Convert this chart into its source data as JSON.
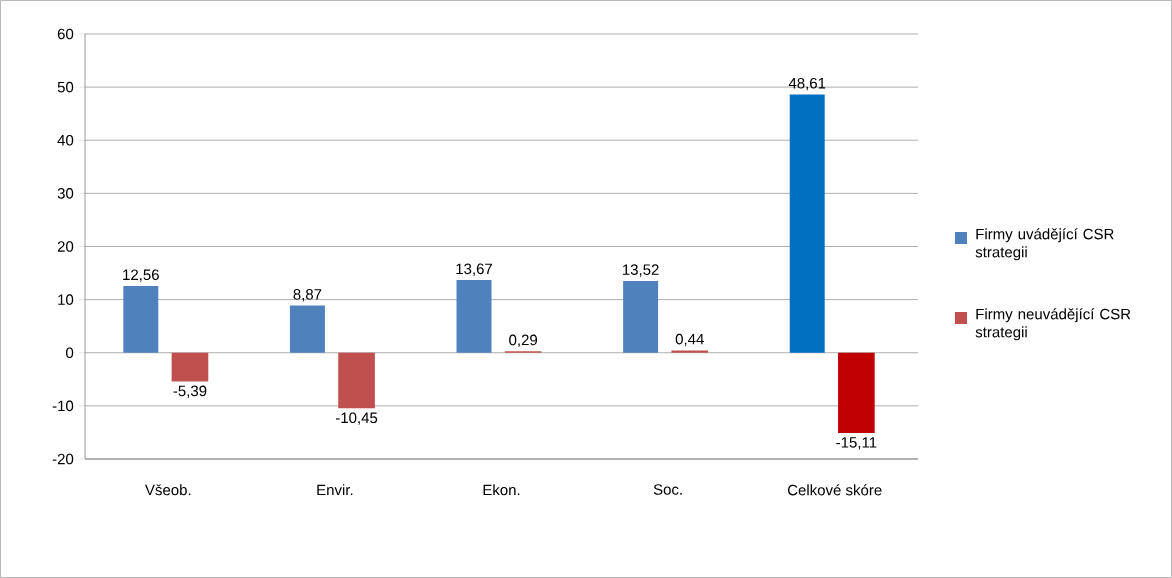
{
  "chart_data": {
    "type": "bar",
    "categories": [
      "Všeob.",
      "Envir.",
      "Ekon.",
      "Soc.",
      "Celkové skóre"
    ],
    "series": [
      {
        "name": "Firmy uvádějící CSR strategii",
        "color": "#4f81bd",
        "colors": [
          "#4f81bd",
          "#4f81bd",
          "#4f81bd",
          "#4f81bd",
          "#0070c0"
        ],
        "values": [
          12.56,
          8.87,
          13.67,
          13.52,
          48.61
        ],
        "value_labels": [
          "12,56",
          "8,87",
          "13,67",
          "13,52",
          "48,61"
        ]
      },
      {
        "name": "Firmy neuvádějící CSR strategii",
        "color": "#c0504d",
        "colors": [
          "#c0504d",
          "#c0504d",
          "#c0504d",
          "#c0504d",
          "#c00000"
        ],
        "values": [
          -5.39,
          -10.45,
          0.29,
          0.44,
          -15.11
        ],
        "value_labels": [
          "-5,39",
          "-10,45",
          "0,29",
          "0,44",
          "-15,11"
        ]
      }
    ],
    "ylim": [
      -20,
      60
    ],
    "yticks": [
      -20,
      -10,
      0,
      10,
      20,
      30,
      40,
      50,
      60
    ],
    "grid": "y",
    "legend": "right"
  }
}
